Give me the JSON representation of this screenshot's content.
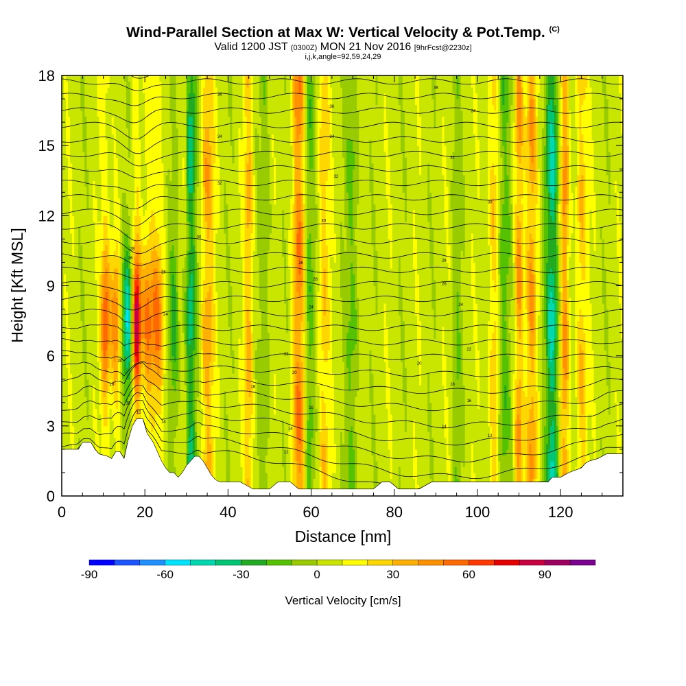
{
  "header": {
    "title": "Wind-Parallel Section at Max W: Vertical Velocity & Pot.Temp.",
    "copyright": "(C)",
    "subtitle_pre": "Valid 1200 JST",
    "subtitle_zulu": "(0300Z)",
    "subtitle_mid": "MON 21 Nov 2016",
    "subtitle_fcst": "[9hrFcst@2230z]",
    "params": "i,j,k,angle=92,59,24,29"
  },
  "chart_data": {
    "type": "heatmap",
    "xlabel": "Distance [nm]",
    "ylabel": "Height [Kft MSL]",
    "xlim": [
      0,
      135
    ],
    "ylim": [
      0,
      18
    ],
    "x_ticks": [
      0,
      20,
      40,
      60,
      80,
      100,
      120
    ],
    "y_ticks": [
      0,
      3,
      6,
      9,
      12,
      15,
      18
    ],
    "colorbar": {
      "label": "Vertical Velocity [cm/s]",
      "ticks": [
        -90,
        -60,
        -30,
        0,
        30,
        60,
        90
      ],
      "range": [
        -90,
        110
      ],
      "colors": [
        "#0000ff",
        "#1a55ff",
        "#1e90ff",
        "#00e5ff",
        "#00d9b0",
        "#00c673",
        "#22aa22",
        "#55c200",
        "#99cc00",
        "#c8e600",
        "#ffff00",
        "#ffd700",
        "#ffb000",
        "#ff9000",
        "#ff6a00",
        "#ff3800",
        "#e60000",
        "#c80040",
        "#9e0060",
        "#7a0090"
      ]
    },
    "vertical_velocity_features": [
      {
        "x": 10.5,
        "w_cm_s": 55
      },
      {
        "x": 13,
        "w_cm_s": 50
      },
      {
        "x": 15.8,
        "w_cm_s": -60
      },
      {
        "x": 18,
        "w_cm_s": 95
      },
      {
        "x": 20.5,
        "w_cm_s": 45
      },
      {
        "x": 23,
        "w_cm_s": 45
      },
      {
        "x": 27,
        "w_cm_s": -30
      },
      {
        "x": 31,
        "w_cm_s": -45
      },
      {
        "x": 35,
        "w_cm_s": 35
      },
      {
        "x": 45,
        "w_cm_s": 30
      },
      {
        "x": 49,
        "w_cm_s": -15
      },
      {
        "x": 57,
        "w_cm_s": 45
      },
      {
        "x": 59.5,
        "w_cm_s": -25
      },
      {
        "x": 63,
        "w_cm_s": 25
      },
      {
        "x": 70,
        "w_cm_s": -20
      },
      {
        "x": 95,
        "w_cm_s": -15
      },
      {
        "x": 104,
        "w_cm_s": 30
      },
      {
        "x": 106.5,
        "w_cm_s": -30
      },
      {
        "x": 110,
        "w_cm_s": 45
      },
      {
        "x": 113,
        "w_cm_s": 35
      },
      {
        "x": 118,
        "w_cm_s": -50
      },
      {
        "x": 121,
        "w_cm_s": 40
      },
      {
        "x": 125,
        "w_cm_s": 30
      }
    ],
    "terrain": [
      [
        0,
        2
      ],
      [
        4,
        2
      ],
      [
        5,
        2.3
      ],
      [
        7,
        2.3
      ],
      [
        8,
        2
      ],
      [
        9,
        1.8
      ],
      [
        11,
        1.7
      ],
      [
        12,
        1.6
      ],
      [
        13,
        1.9
      ],
      [
        14,
        1.9
      ],
      [
        15,
        1.6
      ],
      [
        16,
        2.4
      ],
      [
        17,
        3
      ],
      [
        18,
        3.3
      ],
      [
        19.5,
        3.3
      ],
      [
        20.5,
        2.7
      ],
      [
        22,
        2.3
      ],
      [
        23,
        1.9
      ],
      [
        24,
        1.5
      ],
      [
        25,
        1.2
      ],
      [
        26,
        1
      ],
      [
        27,
        1
      ],
      [
        28,
        0.8
      ],
      [
        29,
        1
      ],
      [
        30,
        1.3
      ],
      [
        31,
        1.5
      ],
      [
        32,
        1.7
      ],
      [
        33,
        1.7
      ],
      [
        34,
        1.5
      ],
      [
        35,
        1.2
      ],
      [
        36,
        0.9
      ],
      [
        37,
        0.7
      ],
      [
        38,
        0.6
      ],
      [
        40,
        0.6
      ],
      [
        43,
        0.6
      ],
      [
        45,
        0.4
      ],
      [
        46,
        0.3
      ],
      [
        48,
        0.3
      ],
      [
        50,
        0.3
      ],
      [
        52,
        0.6
      ],
      [
        55,
        0.6
      ],
      [
        57,
        0.3
      ],
      [
        60,
        0.3
      ],
      [
        65,
        0.3
      ],
      [
        75,
        0.3
      ],
      [
        77,
        0.6
      ],
      [
        79,
        0.6
      ],
      [
        81,
        0.3
      ],
      [
        86,
        0.3
      ],
      [
        89,
        0.6
      ],
      [
        95,
        0.6
      ],
      [
        105,
        0.6
      ],
      [
        115,
        0.6
      ],
      [
        117,
        0.6
      ],
      [
        118,
        0.8
      ],
      [
        120,
        0.8
      ],
      [
        122,
        1
      ],
      [
        125,
        1.2
      ],
      [
        126,
        1.4
      ],
      [
        127,
        1.5
      ],
      [
        129,
        1.6
      ],
      [
        131,
        1.8
      ],
      [
        133,
        1.8
      ],
      [
        135,
        1.8
      ]
    ],
    "isentrope_labels": [
      {
        "x": 38,
        "y": 17.2,
        "text": "36"
      },
      {
        "x": 65,
        "y": 16.7,
        "text": "36"
      },
      {
        "x": 90,
        "y": 17.5,
        "text": "38"
      },
      {
        "x": 99,
        "y": 16.5,
        "text": "34"
      },
      {
        "x": 38,
        "y": 15.4,
        "text": "34"
      },
      {
        "x": 65,
        "y": 15.4,
        "text": "34"
      },
      {
        "x": 94,
        "y": 14.5,
        "text": "32"
      },
      {
        "x": 66,
        "y": 13.7,
        "text": "32"
      },
      {
        "x": 38,
        "y": 13.4,
        "text": "32"
      },
      {
        "x": 103,
        "y": 12.6,
        "text": "30"
      },
      {
        "x": 63,
        "y": 11.8,
        "text": "30"
      },
      {
        "x": 33,
        "y": 11.1,
        "text": "30"
      },
      {
        "x": 17,
        "y": 10.6,
        "text": "28"
      },
      {
        "x": 92,
        "y": 10.1,
        "text": "28"
      },
      {
        "x": 57.5,
        "y": 10,
        "text": "26"
      },
      {
        "x": 16.5,
        "y": 10.2,
        "text": "26"
      },
      {
        "x": 24.5,
        "y": 9.6,
        "text": "26"
      },
      {
        "x": 61,
        "y": 9.3,
        "text": "26"
      },
      {
        "x": 92,
        "y": 9.1,
        "text": "26"
      },
      {
        "x": 96,
        "y": 8.2,
        "text": "24"
      },
      {
        "x": 60,
        "y": 8.1,
        "text": "24"
      },
      {
        "x": 25,
        "y": 7.8,
        "text": "24"
      },
      {
        "x": 98,
        "y": 6.3,
        "text": "22"
      },
      {
        "x": 54,
        "y": 6.1,
        "text": "22"
      },
      {
        "x": 86,
        "y": 5.7,
        "text": "20"
      },
      {
        "x": 14,
        "y": 5.8,
        "text": "20"
      },
      {
        "x": 56,
        "y": 5.3,
        "text": "20"
      },
      {
        "x": 94,
        "y": 4.8,
        "text": "18"
      },
      {
        "x": 12,
        "y": 4.8,
        "text": "18"
      },
      {
        "x": 46,
        "y": 4.7,
        "text": "18"
      },
      {
        "x": 98,
        "y": 4.1,
        "text": "16"
      },
      {
        "x": 16,
        "y": 4,
        "text": "16"
      },
      {
        "x": 60,
        "y": 3.8,
        "text": "16"
      },
      {
        "x": 18.5,
        "y": 3.6,
        "text": "15"
      },
      {
        "x": 24.5,
        "y": 3.2,
        "text": "14"
      },
      {
        "x": 55,
        "y": 2.9,
        "text": "14"
      },
      {
        "x": 92,
        "y": 3,
        "text": "14"
      },
      {
        "x": 103,
        "y": 2.6,
        "text": "12"
      },
      {
        "x": 54,
        "y": 1.9,
        "text": "12"
      }
    ]
  }
}
